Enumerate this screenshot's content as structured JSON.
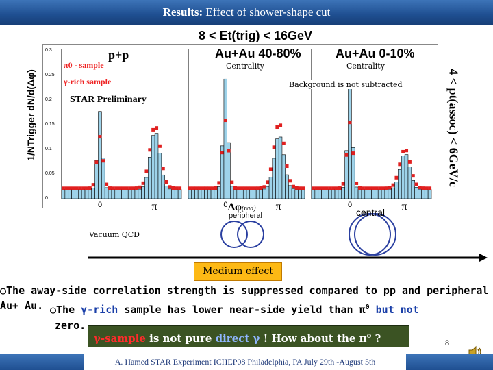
{
  "slide": {
    "title_prefix": "Results:",
    "title_rest": " Effect of shower-shape cut",
    "page_number": "8",
    "footer": "A. Hamed STAR Experiment ICHEP08 Philadelphia, PA July 29th -August 5th"
  },
  "figure": {
    "et_label": "8 < Et(trig) < 16GeV",
    "pt_assoc_label": "4 < pt(assoc) < 6GeV/c",
    "y_axis_label": "1/NTrigger dN/d(Δφ)",
    "panels": [
      {
        "title": "p+p",
        "legend_pi0": "π0 - sample",
        "legend_gamma": "γ-rich sample",
        "preliminary": "STAR Preliminary"
      },
      {
        "title": "Au+Au 40-80%"
      },
      {
        "title": "Au+Au 0-10%"
      }
    ],
    "y_ticks": [
      "0.3",
      "0.25",
      "0.2",
      "0.15",
      "0.1",
      "0.05",
      "0"
    ],
    "x_ticks": [
      "0",
      "π",
      "0",
      "π",
      "0",
      "π"
    ],
    "x_axis_label": "Δφ",
    "x_axis_unit": "(rad)",
    "peripheral_label": "peripheral",
    "central_label": "central",
    "colors": {
      "pi0_points": "#e02020",
      "gamma_hist": "#9ed3ea"
    }
  },
  "annotations": {
    "centrality_1": "Centrality",
    "centrality_2": "Centrality",
    "background_note": "Background is not subtracted",
    "vacuum_qcd": "Vacuum QCD",
    "medium_effect": "Medium effect"
  },
  "text": {
    "bullet1_line1": "○The away-side correlation strength is suppressed compared to pp and peripheral",
    "bullet1_line2": "Au+ Au.",
    "bullet2_a": "○The ",
    "bullet2_gamma": "γ-rich",
    "bullet2_b": " sample has lower near-side yield than π",
    "bullet2_sup": "0",
    "bullet2_but": " but not",
    "bullet2_line2": "zero.",
    "box_red": "γ-sample",
    "box_mid": " is not pure ",
    "box_blue": "direct γ",
    "box_end": " ! How about the π",
    "box_sup": "o",
    "box_q": " ?"
  }
}
